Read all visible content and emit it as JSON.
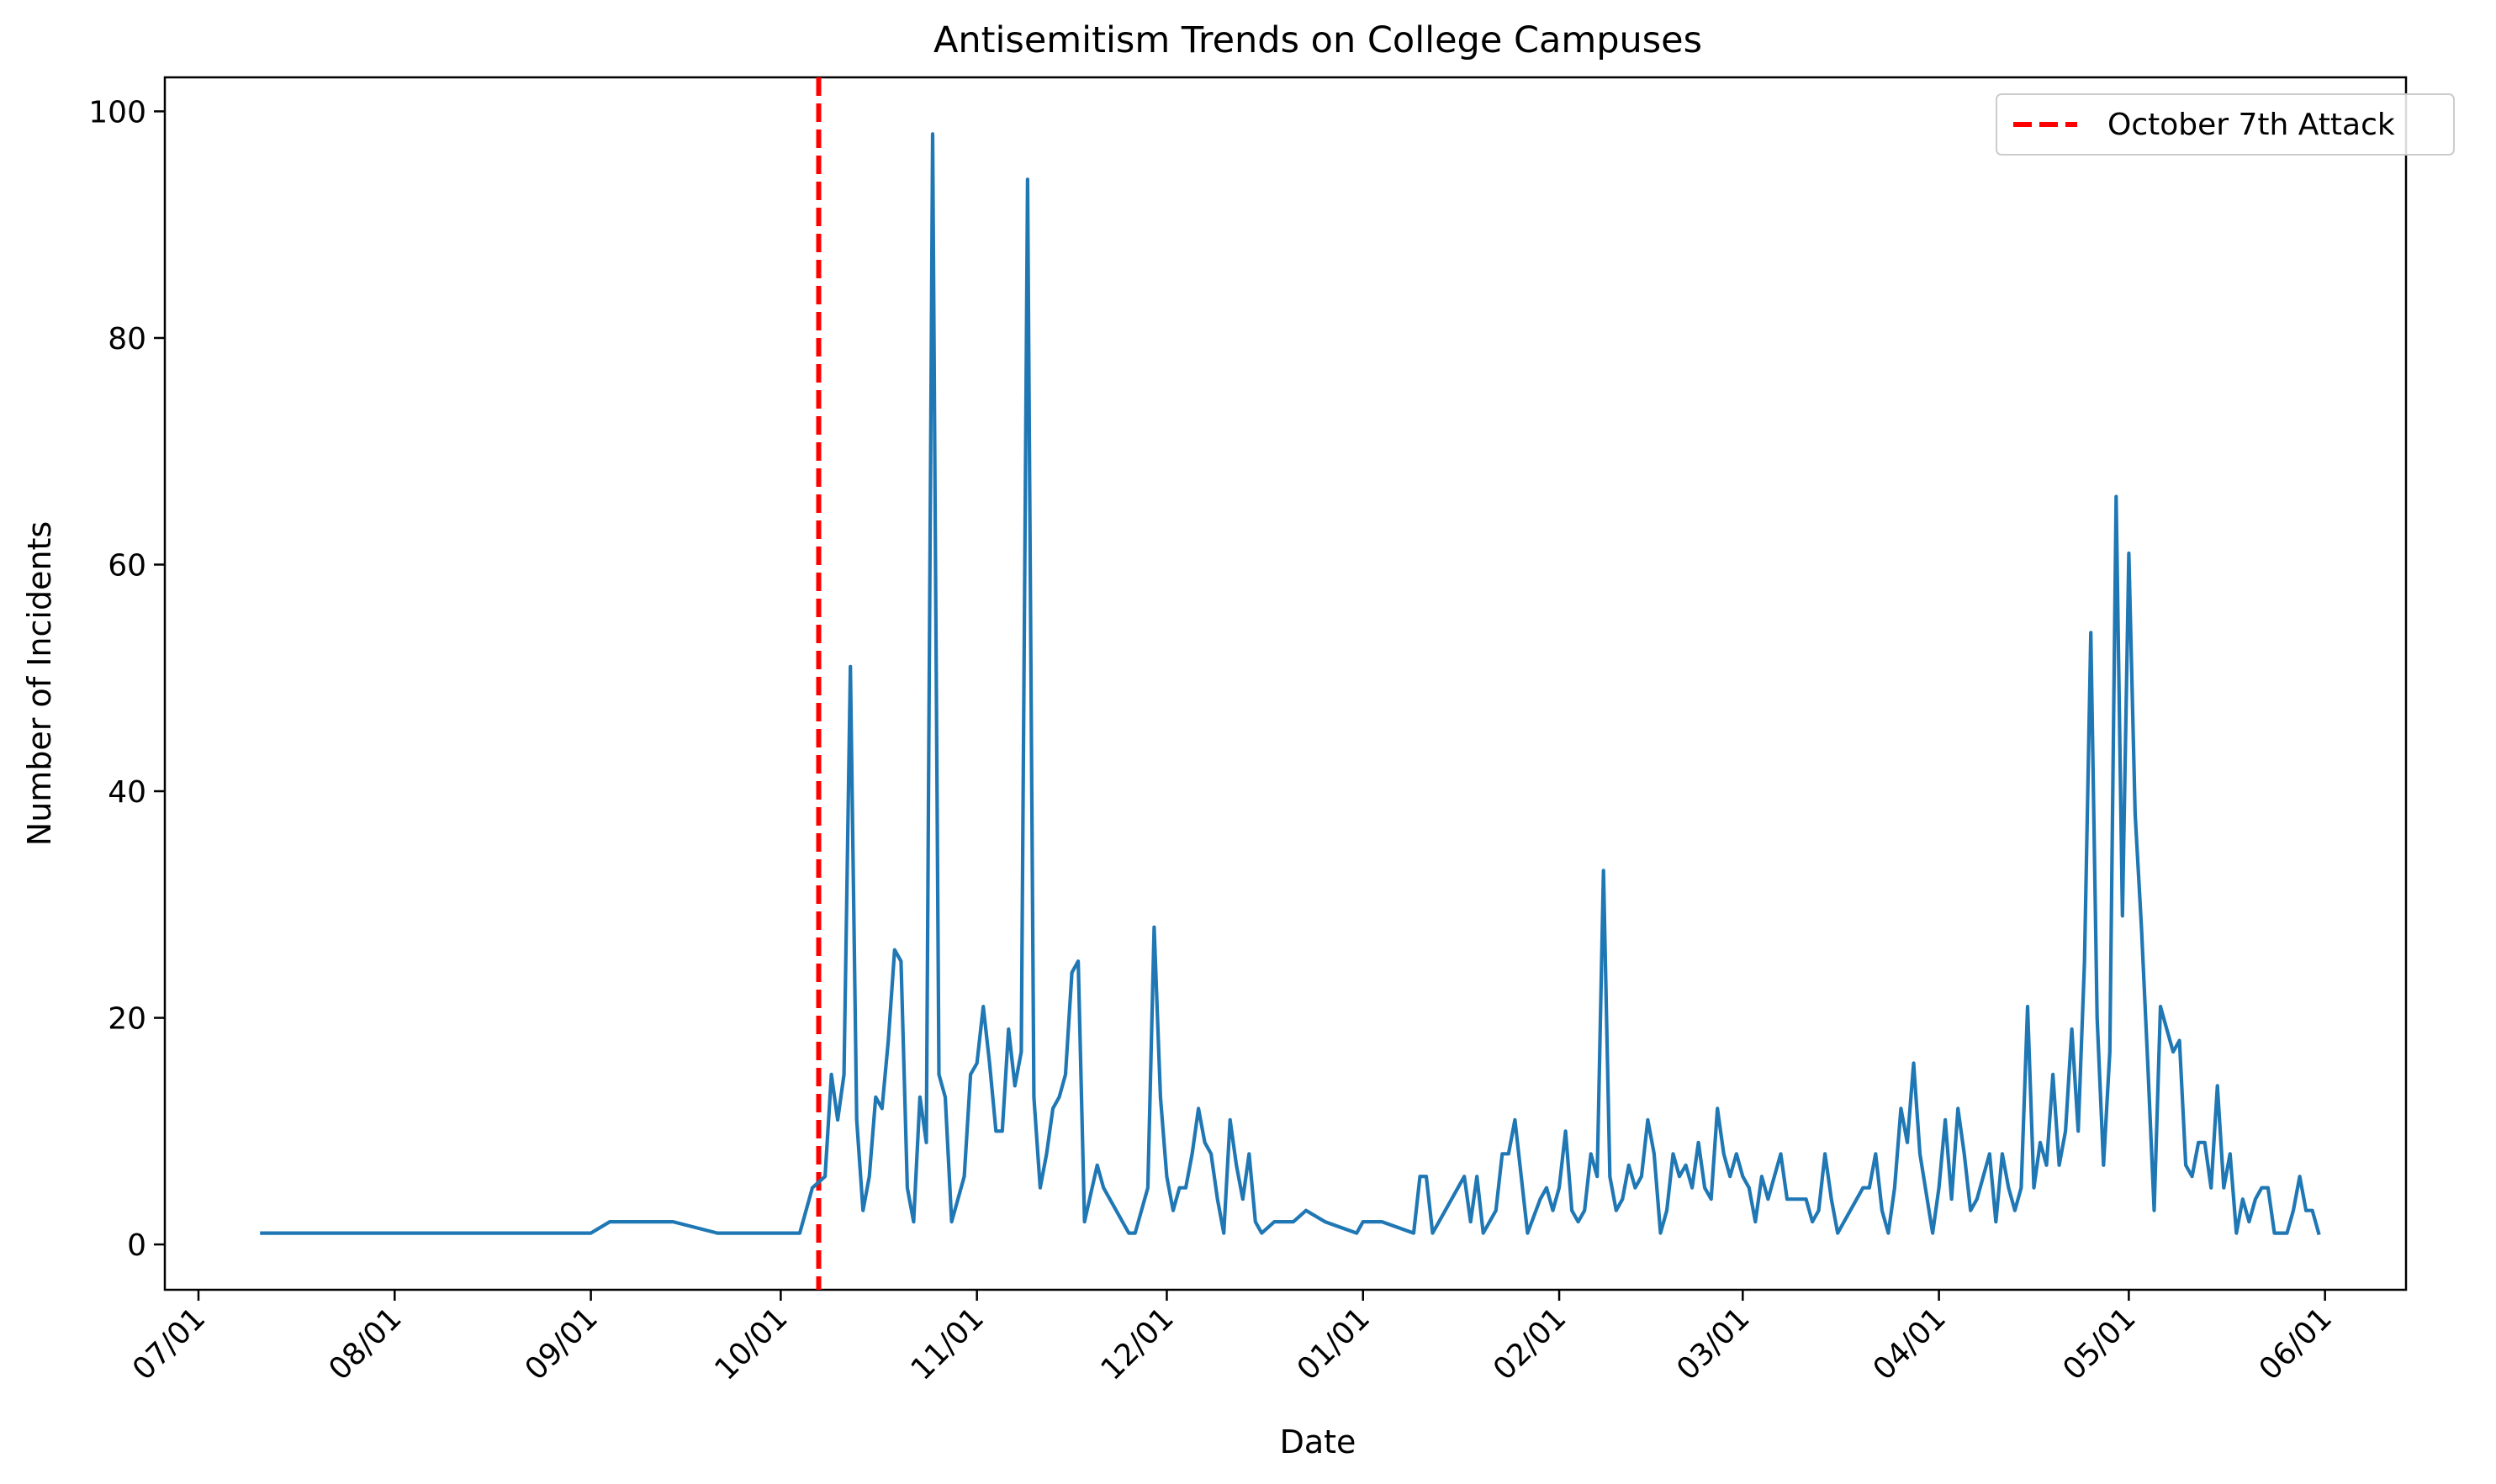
{
  "chart_data": {
    "type": "line",
    "title": "Antisemitism Trends on College Campuses",
    "xlabel": "Date",
    "ylabel": "Number of Incidents",
    "x_tick_labels": [
      "07/01",
      "08/01",
      "09/01",
      "10/01",
      "11/01",
      "12/01",
      "01/01",
      "02/01",
      "03/01",
      "04/01",
      "05/01",
      "06/01"
    ],
    "y_ticks": [
      0,
      20,
      40,
      60,
      80,
      100
    ],
    "ylim": [
      -4,
      103
    ],
    "grid": false,
    "legend": {
      "position": "top-right",
      "entries": [
        "October 7th Attack"
      ]
    },
    "vline": {
      "label": "October 7th Attack",
      "x": "10/07",
      "color": "#ff0000",
      "style": "dashed"
    },
    "series": [
      {
        "color": "#1f77b4",
        "points": [
          [
            "07/11",
            1
          ],
          [
            "07/25",
            1
          ],
          [
            "08/10",
            1
          ],
          [
            "08/25",
            1
          ],
          [
            "09/01",
            1
          ],
          [
            "09/04",
            2
          ],
          [
            "09/14",
            2
          ],
          [
            "09/21",
            1
          ],
          [
            "09/28",
            1
          ],
          [
            "10/04",
            1
          ],
          [
            "10/06",
            5
          ],
          [
            "10/08",
            6
          ],
          [
            "10/09",
            15
          ],
          [
            "10/10",
            11
          ],
          [
            "10/11",
            15
          ],
          [
            "10/12",
            51
          ],
          [
            "10/13",
            11
          ],
          [
            "10/14",
            3
          ],
          [
            "10/15",
            6
          ],
          [
            "10/16",
            13
          ],
          [
            "10/17",
            12
          ],
          [
            "10/18",
            18
          ],
          [
            "10/19",
            26
          ],
          [
            "10/20",
            25
          ],
          [
            "10/21",
            5
          ],
          [
            "10/22",
            2
          ],
          [
            "10/23",
            13
          ],
          [
            "10/24",
            9
          ],
          [
            "10/25",
            98
          ],
          [
            "10/26",
            15
          ],
          [
            "10/27",
            13
          ],
          [
            "10/28",
            2
          ],
          [
            "10/30",
            6
          ],
          [
            "10/31",
            15
          ],
          [
            "11/01",
            16
          ],
          [
            "11/02",
            21
          ],
          [
            "11/03",
            16
          ],
          [
            "11/04",
            10
          ],
          [
            "11/05",
            10
          ],
          [
            "11/06",
            19
          ],
          [
            "11/07",
            14
          ],
          [
            "11/08",
            17
          ],
          [
            "11/09",
            94
          ],
          [
            "11/10",
            13
          ],
          [
            "11/11",
            5
          ],
          [
            "11/12",
            8
          ],
          [
            "11/13",
            12
          ],
          [
            "11/14",
            13
          ],
          [
            "11/15",
            15
          ],
          [
            "11/16",
            24
          ],
          [
            "11/17",
            25
          ],
          [
            "11/18",
            2
          ],
          [
            "11/20",
            7
          ],
          [
            "11/21",
            5
          ],
          [
            "11/25",
            1
          ],
          [
            "11/26",
            1
          ],
          [
            "11/28",
            5
          ],
          [
            "11/29",
            28
          ],
          [
            "11/30",
            13
          ],
          [
            "12/01",
            6
          ],
          [
            "12/02",
            3
          ],
          [
            "12/03",
            5
          ],
          [
            "12/04",
            5
          ],
          [
            "12/05",
            8
          ],
          [
            "12/06",
            12
          ],
          [
            "12/07",
            9
          ],
          [
            "12/08",
            8
          ],
          [
            "12/09",
            4
          ],
          [
            "12/10",
            1
          ],
          [
            "12/11",
            11
          ],
          [
            "12/12",
            7
          ],
          [
            "12/13",
            4
          ],
          [
            "12/14",
            8
          ],
          [
            "12/15",
            2
          ],
          [
            "12/16",
            1
          ],
          [
            "12/18",
            2
          ],
          [
            "12/21",
            2
          ],
          [
            "12/23",
            3
          ],
          [
            "12/26",
            2
          ],
          [
            "12/31",
            1
          ],
          [
            "01/01",
            2
          ],
          [
            "01/04",
            2
          ],
          [
            "01/09",
            1
          ],
          [
            "01/10",
            6
          ],
          [
            "01/11",
            6
          ],
          [
            "01/12",
            1
          ],
          [
            "01/17",
            6
          ],
          [
            "01/18",
            2
          ],
          [
            "01/19",
            6
          ],
          [
            "01/20",
            1
          ],
          [
            "01/22",
            3
          ],
          [
            "01/23",
            8
          ],
          [
            "01/24",
            8
          ],
          [
            "01/25",
            11
          ],
          [
            "01/26",
            6
          ],
          [
            "01/27",
            1
          ],
          [
            "01/29",
            4
          ],
          [
            "01/30",
            5
          ],
          [
            "01/31",
            3
          ],
          [
            "02/01",
            5
          ],
          [
            "02/02",
            10
          ],
          [
            "02/03",
            3
          ],
          [
            "02/04",
            2
          ],
          [
            "02/05",
            3
          ],
          [
            "02/06",
            8
          ],
          [
            "02/07",
            6
          ],
          [
            "02/08",
            33
          ],
          [
            "02/09",
            6
          ],
          [
            "02/10",
            3
          ],
          [
            "02/11",
            4
          ],
          [
            "02/12",
            7
          ],
          [
            "02/13",
            5
          ],
          [
            "02/14",
            6
          ],
          [
            "02/15",
            11
          ],
          [
            "02/16",
            8
          ],
          [
            "02/17",
            1
          ],
          [
            "02/18",
            3
          ],
          [
            "02/19",
            8
          ],
          [
            "02/20",
            6
          ],
          [
            "02/21",
            7
          ],
          [
            "02/22",
            5
          ],
          [
            "02/23",
            9
          ],
          [
            "02/24",
            5
          ],
          [
            "02/25",
            4
          ],
          [
            "02/26",
            12
          ],
          [
            "02/27",
            8
          ],
          [
            "02/28",
            6
          ],
          [
            "02/29",
            8
          ],
          [
            "03/01",
            6
          ],
          [
            "03/02",
            5
          ],
          [
            "03/03",
            2
          ],
          [
            "03/04",
            6
          ],
          [
            "03/05",
            4
          ],
          [
            "03/06",
            6
          ],
          [
            "03/07",
            8
          ],
          [
            "03/08",
            4
          ],
          [
            "03/11",
            4
          ],
          [
            "03/12",
            2
          ],
          [
            "03/13",
            3
          ],
          [
            "03/14",
            8
          ],
          [
            "03/15",
            4
          ],
          [
            "03/16",
            1
          ],
          [
            "03/20",
            5
          ],
          [
            "03/21",
            5
          ],
          [
            "03/22",
            8
          ],
          [
            "03/23",
            3
          ],
          [
            "03/24",
            1
          ],
          [
            "03/25",
            5
          ],
          [
            "03/26",
            12
          ],
          [
            "03/27",
            9
          ],
          [
            "03/28",
            16
          ],
          [
            "03/29",
            8
          ],
          [
            "03/31",
            1
          ],
          [
            "04/01",
            5
          ],
          [
            "04/02",
            11
          ],
          [
            "04/03",
            4
          ],
          [
            "04/04",
            12
          ],
          [
            "04/05",
            8
          ],
          [
            "04/06",
            3
          ],
          [
            "04/07",
            4
          ],
          [
            "04/09",
            8
          ],
          [
            "04/10",
            2
          ],
          [
            "04/11",
            8
          ],
          [
            "04/12",
            5
          ],
          [
            "04/13",
            3
          ],
          [
            "04/14",
            5
          ],
          [
            "04/15",
            21
          ],
          [
            "04/16",
            5
          ],
          [
            "04/17",
            9
          ],
          [
            "04/18",
            7
          ],
          [
            "04/19",
            15
          ],
          [
            "04/20",
            7
          ],
          [
            "04/21",
            10
          ],
          [
            "04/22",
            19
          ],
          [
            "04/23",
            10
          ],
          [
            "04/24",
            25
          ],
          [
            "04/25",
            54
          ],
          [
            "04/26",
            20
          ],
          [
            "04/27",
            7
          ],
          [
            "04/28",
            17
          ],
          [
            "04/29",
            66
          ],
          [
            "04/30",
            29
          ],
          [
            "05/01",
            61
          ],
          [
            "05/02",
            38
          ],
          [
            "05/03",
            28
          ],
          [
            "05/04",
            16
          ],
          [
            "05/05",
            3
          ],
          [
            "05/06",
            21
          ],
          [
            "05/07",
            19
          ],
          [
            "05/08",
            17
          ],
          [
            "05/09",
            18
          ],
          [
            "05/10",
            7
          ],
          [
            "05/11",
            6
          ],
          [
            "05/12",
            9
          ],
          [
            "05/13",
            9
          ],
          [
            "05/14",
            5
          ],
          [
            "05/15",
            14
          ],
          [
            "05/16",
            5
          ],
          [
            "05/17",
            8
          ],
          [
            "05/18",
            1
          ],
          [
            "05/19",
            4
          ],
          [
            "05/20",
            2
          ],
          [
            "05/21",
            4
          ],
          [
            "05/22",
            5
          ],
          [
            "05/23",
            5
          ],
          [
            "05/24",
            1
          ],
          [
            "05/26",
            1
          ],
          [
            "05/27",
            3
          ],
          [
            "05/28",
            6
          ],
          [
            "05/29",
            3
          ],
          [
            "05/30",
            3
          ],
          [
            "05/31",
            1
          ]
        ]
      }
    ]
  }
}
